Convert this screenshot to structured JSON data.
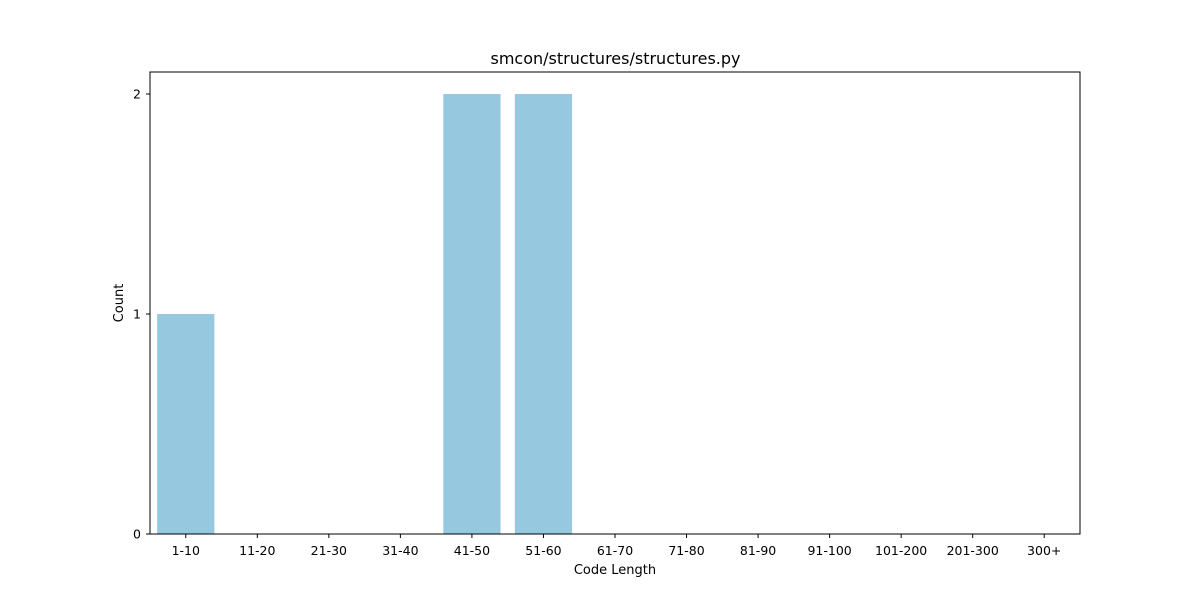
{
  "chart_data": {
    "type": "bar",
    "title": "smcon/structures/structures.py",
    "xlabel": "Code Length",
    "ylabel": "Count",
    "categories": [
      "1-10",
      "11-20",
      "21-30",
      "31-40",
      "41-50",
      "51-60",
      "61-70",
      "71-80",
      "81-90",
      "91-100",
      "101-200",
      "201-300",
      "300+"
    ],
    "values": [
      1,
      0,
      0,
      0,
      2,
      2,
      0,
      0,
      0,
      0,
      0,
      0,
      0
    ],
    "ylim": [
      0,
      2.1
    ],
    "yticks": [
      0,
      1,
      2
    ],
    "bar_color": "#96c9df",
    "grid": false,
    "legend": "none"
  }
}
